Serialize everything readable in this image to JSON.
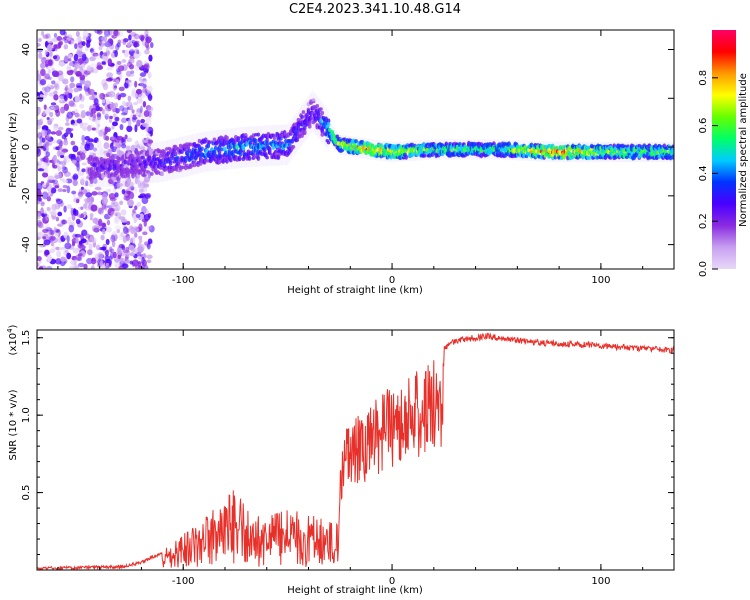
{
  "title": "C2E4.2023.341.10.48.G14",
  "chart_data": [
    {
      "type": "heatmap",
      "xlabel": "Height of straight line (km)",
      "ylabel": "Frequency (Hz)",
      "xlim": [
        -170,
        135
      ],
      "ylim": [
        -50,
        48
      ],
      "xticks": [
        -100,
        0,
        100
      ],
      "yticks": [
        -40,
        -20,
        0,
        20,
        40
      ],
      "colorbar": {
        "label": "Normalized spectral amplitude",
        "range": [
          0.0,
          1.0
        ],
        "ticks": [
          "0.0",
          "0.2",
          "0.4",
          "0.6",
          "0.8"
        ],
        "colors": [
          "#e8d8f8",
          "#c8a0f0",
          "#8a2be2",
          "#4a00ff",
          "#0033ff",
          "#00ccff",
          "#00ff66",
          "#66ff00",
          "#ffff00",
          "#ff9900",
          "#ff0000",
          "#ff0066"
        ]
      },
      "ridge": [
        {
          "x": -130,
          "f": -8,
          "amp": 0.25
        },
        {
          "x": -110,
          "f": -6,
          "amp": 0.3
        },
        {
          "x": -90,
          "f": -2,
          "amp": 0.4
        },
        {
          "x": -70,
          "f": 0,
          "amp": 0.45
        },
        {
          "x": -50,
          "f": 1,
          "amp": 0.4
        },
        {
          "x": -38,
          "f": 15,
          "amp": 0.25
        },
        {
          "x": -25,
          "f": 1,
          "amp": 0.7
        },
        {
          "x": -10,
          "f": -1,
          "amp": 0.8
        },
        {
          "x": 0,
          "f": -2,
          "amp": 0.75
        },
        {
          "x": 20,
          "f": -1,
          "amp": 0.6
        },
        {
          "x": 50,
          "f": -1,
          "amp": 0.55
        },
        {
          "x": 80,
          "f": -2,
          "amp": 0.9
        },
        {
          "x": 100,
          "f": -2,
          "amp": 0.7
        },
        {
          "x": 130,
          "f": -2,
          "amp": 0.6
        }
      ]
    },
    {
      "type": "line",
      "xlabel": "Height of straight line (km)",
      "ylabel": "SNR (10 * v/v)",
      "multiplier": "(x10",
      "multiplier_exp": "4",
      "multiplier_close": ")",
      "xlim": [
        -170,
        135
      ],
      "ylim": [
        0,
        1.55
      ],
      "xticks": [
        -100,
        0,
        100
      ],
      "yticks": [
        "0.5",
        "1.0",
        "1.5"
      ],
      "ytick_values": [
        0.5,
        1.0,
        1.5
      ],
      "color": "#e8302a",
      "series_envelope": [
        {
          "x": -170,
          "y": 0.02
        },
        {
          "x": -130,
          "y": 0.03
        },
        {
          "x": -120,
          "y": 0.06
        },
        {
          "x": -110,
          "y": 0.12
        },
        {
          "x": -100,
          "y": 0.25
        },
        {
          "x": -90,
          "y": 0.35
        },
        {
          "x": -75,
          "y": 0.55
        },
        {
          "x": -65,
          "y": 0.35
        },
        {
          "x": -50,
          "y": 0.4
        },
        {
          "x": -35,
          "y": 0.35
        },
        {
          "x": -27,
          "y": 0.3
        },
        {
          "x": -23,
          "y": 1.0
        },
        {
          "x": -15,
          "y": 1.0
        },
        {
          "x": -5,
          "y": 1.15
        },
        {
          "x": 5,
          "y": 1.25
        },
        {
          "x": 15,
          "y": 1.35
        },
        {
          "x": 20,
          "y": 1.4
        },
        {
          "x": 30,
          "y": 1.5
        },
        {
          "x": 45,
          "y": 1.53
        },
        {
          "x": 60,
          "y": 1.5
        },
        {
          "x": 80,
          "y": 1.48
        },
        {
          "x": 100,
          "y": 1.47
        },
        {
          "x": 120,
          "y": 1.45
        },
        {
          "x": 135,
          "y": 1.44
        }
      ]
    }
  ]
}
